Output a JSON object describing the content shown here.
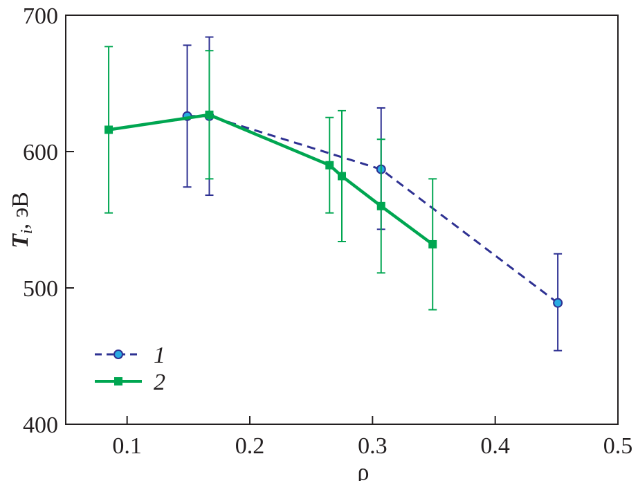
{
  "chart_data": {
    "type": "line",
    "xlabel": "ρ",
    "ylabel_main": "T",
    "ylabel_sub": "i",
    "ylabel_rest": ", эВ",
    "xlim": [
      0.05,
      0.5
    ],
    "ylim": [
      400,
      700
    ],
    "xticks": [
      0.1,
      0.2,
      0.3,
      0.4,
      0.5
    ],
    "yticks": [
      400,
      500,
      600,
      700
    ],
    "xtick_labels": [
      "0.1",
      "0.2",
      "0.3",
      "0.4",
      "0.5"
    ],
    "ytick_labels": [
      "400",
      "500",
      "600",
      "700"
    ],
    "legend_position": "bottom-left",
    "series": [
      {
        "name": "1",
        "color": "#2e3192",
        "marker_fill": "#29abe2",
        "line_style": "dashed",
        "marker": "circle",
        "points": [
          {
            "x": 0.149,
            "y": 626,
            "err_low": 574,
            "err_high": 678
          },
          {
            "x": 0.167,
            "y": 626,
            "err_low": 568,
            "err_high": 684
          },
          {
            "x": 0.307,
            "y": 587,
            "err_low": 543,
            "err_high": 632
          },
          {
            "x": 0.451,
            "y": 489,
            "err_low": 454,
            "err_high": 525
          }
        ]
      },
      {
        "name": "2",
        "color": "#00a651",
        "marker_fill": "#00a651",
        "line_style": "solid",
        "marker": "square",
        "points": [
          {
            "x": 0.085,
            "y": 616,
            "err_low": 555,
            "err_high": 677
          },
          {
            "x": 0.167,
            "y": 627,
            "err_low": 580,
            "err_high": 674
          },
          {
            "x": 0.265,
            "y": 590,
            "err_low": 555,
            "err_high": 625
          },
          {
            "x": 0.275,
            "y": 582,
            "err_low": 534,
            "err_high": 630
          },
          {
            "x": 0.307,
            "y": 560,
            "err_low": 511,
            "err_high": 609
          },
          {
            "x": 0.349,
            "y": 532,
            "err_low": 484,
            "err_high": 580
          }
        ]
      }
    ]
  }
}
